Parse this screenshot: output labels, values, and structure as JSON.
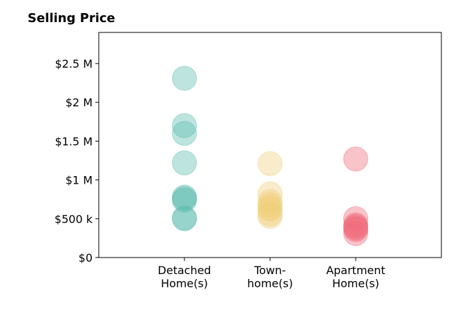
{
  "chart_data": {
    "type": "scatter",
    "title": "Selling Price",
    "xlabel": "",
    "ylabel": "",
    "categories": [
      "Detached\nHome(s)",
      "Town-\nhome(s)",
      "Apartment\nHome(s)"
    ],
    "yticks": [
      0,
      500000,
      1000000,
      1500000,
      2000000,
      2500000
    ],
    "ytick_labels": [
      "$0",
      "$500 k",
      "$1 M",
      "$1.5 M",
      "$2 M",
      "$2.5 M"
    ],
    "ylim": [
      0,
      2900000
    ],
    "xlim": [
      -1,
      3
    ],
    "grid": false,
    "series": [
      {
        "category_index": 0,
        "color": "#5dbcb0",
        "values": [
          2310000,
          1700000,
          1600000,
          1220000,
          780000,
          760000,
          740000,
          510000,
          500000
        ]
      },
      {
        "category_index": 1,
        "color": "#f0cf7a",
        "values": [
          1210000,
          820000,
          720000,
          680000,
          640000,
          620000,
          560000,
          530000
        ]
      },
      {
        "category_index": 2,
        "color": "#ef6a7a",
        "values": [
          1270000,
          500000,
          420000,
          400000,
          380000,
          360000,
          310000
        ]
      }
    ]
  }
}
